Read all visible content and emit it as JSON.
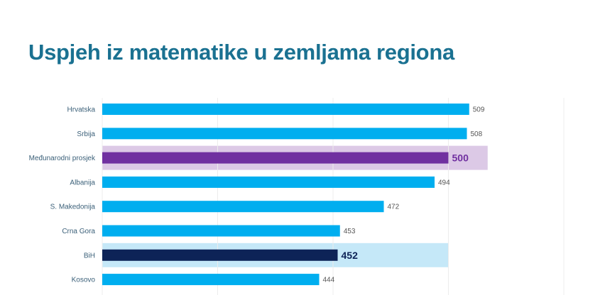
{
  "chart_data": {
    "type": "bar",
    "orientation": "horizontal",
    "title": "Uspjeh iz matematike u zemljama regiona",
    "xlabel": "",
    "ylabel": "",
    "xlim": [
      350,
      550
    ],
    "grid": true,
    "gridlines": [
      400,
      450,
      500,
      550
    ],
    "categories": [
      "Hrvatska",
      "Srbija",
      "Međunarodni prosjek",
      "Albanija",
      "S. Makedonija",
      "Crna Gora",
      "BiH",
      "Kosovo"
    ],
    "values": [
      509,
      508,
      500,
      494,
      472,
      453,
      452,
      444
    ],
    "highlights": [
      {
        "category": "Međunarodni prosjek",
        "bar_color": "#7030a0",
        "band_color": "#dcc9e6",
        "label_color": "#7030a0",
        "band_extent": 517
      },
      {
        "category": "BiH",
        "bar_color": "#0d2357",
        "band_color": "#c5e8f8",
        "label_color": "#0d2357",
        "band_extent": 500
      }
    ],
    "default_bar_color": "#00aeef"
  }
}
